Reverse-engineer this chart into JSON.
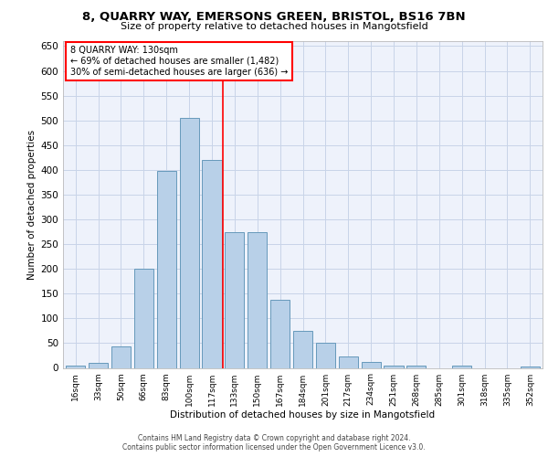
{
  "title_line1": "8, QUARRY WAY, EMERSONS GREEN, BRISTOL, BS16 7BN",
  "title_line2": "Size of property relative to detached houses in Mangotsfield",
  "xlabel": "Distribution of detached houses by size in Mangotsfield",
  "ylabel": "Number of detached properties",
  "categories": [
    "16sqm",
    "33sqm",
    "50sqm",
    "66sqm",
    "83sqm",
    "100sqm",
    "117sqm",
    "133sqm",
    "150sqm",
    "167sqm",
    "184sqm",
    "201sqm",
    "217sqm",
    "234sqm",
    "251sqm",
    "268sqm",
    "285sqm",
    "301sqm",
    "318sqm",
    "335sqm",
    "352sqm"
  ],
  "values": [
    5,
    10,
    43,
    200,
    398,
    505,
    420,
    275,
    275,
    138,
    75,
    50,
    23,
    12,
    5,
    5,
    0,
    5,
    0,
    0,
    3
  ],
  "bar_color": "#b8d0e8",
  "bar_edge_color": "#6699bb",
  "background_color": "#eef2fb",
  "grid_color": "#c8d4e8",
  "marker_label": "8 QUARRY WAY: 130sqm",
  "annotation_line1": "← 69% of detached houses are smaller (1,482)",
  "annotation_line2": "30% of semi-detached houses are larger (636) →",
  "ylim": [
    0,
    660
  ],
  "yticks": [
    0,
    50,
    100,
    150,
    200,
    250,
    300,
    350,
    400,
    450,
    500,
    550,
    600,
    650
  ],
  "footer_line1": "Contains HM Land Registry data © Crown copyright and database right 2024.",
  "footer_line2": "Contains public sector information licensed under the Open Government Licence v3.0."
}
